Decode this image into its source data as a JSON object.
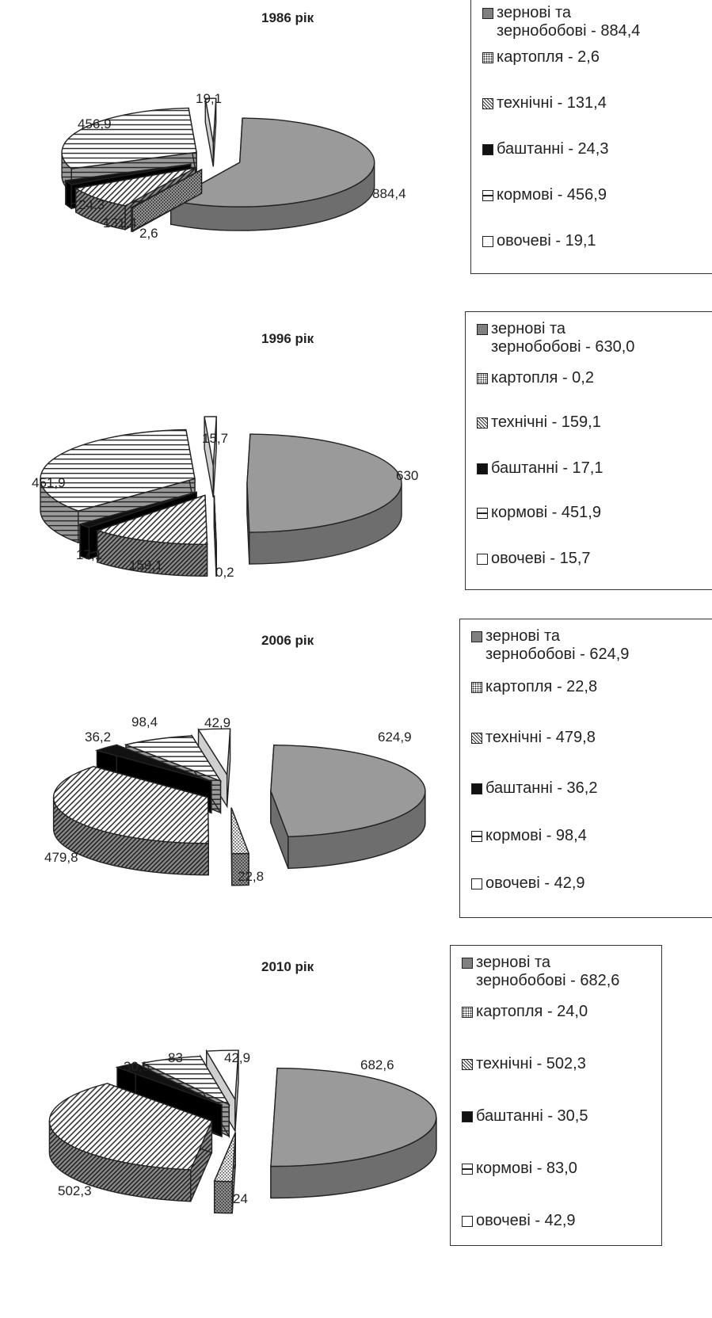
{
  "chart_data": [
    {
      "type": "pie",
      "title": "1986 рік",
      "slices": [
        {
          "name": "зернові та зернобобові",
          "value": 884.4,
          "label": "884,4",
          "legend": "зернові та\nзернобобові - 884,4",
          "pattern": "solid-gray"
        },
        {
          "name": "картопля",
          "value": 2.6,
          "label": "2,6",
          "legend": "картопля - 2,6",
          "pattern": "dots"
        },
        {
          "name": "технічні",
          "value": 131.4,
          "label": "131,4",
          "legend": "технічні - 131,4",
          "pattern": "diag"
        },
        {
          "name": "баштанні",
          "value": 24.3,
          "label": "24,3",
          "legend": "баштанні - 24,3",
          "pattern": "black"
        },
        {
          "name": "кормові",
          "value": 456.9,
          "label": "456,9",
          "legend": "кормові - 456,9",
          "pattern": "hline"
        },
        {
          "name": "овочеві",
          "value": 19.1,
          "label": "19,1",
          "legend": "овочеві - 19,1",
          "pattern": "white"
        }
      ]
    },
    {
      "type": "pie",
      "title": "1996 рік",
      "slices": [
        {
          "name": "зернові та зернобобові",
          "value": 630.0,
          "label": "630",
          "legend": "зернові та\nзернобобові - 630,0",
          "pattern": "solid-gray"
        },
        {
          "name": "картопля",
          "value": 0.2,
          "label": "0,2",
          "legend": "картопля - 0,2",
          "pattern": "dots"
        },
        {
          "name": "технічні",
          "value": 159.1,
          "label": "159,1",
          "legend": "технічні - 159,1",
          "pattern": "diag"
        },
        {
          "name": "баштанні",
          "value": 17.1,
          "label": "17,1",
          "legend": "баштанні - 17,1",
          "pattern": "black"
        },
        {
          "name": "кормові",
          "value": 451.9,
          "label": "451,9",
          "legend": "кормові - 451,9",
          "pattern": "hline"
        },
        {
          "name": "овочеві",
          "value": 15.7,
          "label": "15,7",
          "legend": "овочеві - 15,7",
          "pattern": "white"
        }
      ]
    },
    {
      "type": "pie",
      "title": "2006 рік",
      "slices": [
        {
          "name": "зернові та зернобобові",
          "value": 624.9,
          "label": "624,9",
          "legend": "зернові та\nзернобобові -  624,9",
          "pattern": "solid-gray"
        },
        {
          "name": "картопля",
          "value": 22.8,
          "label": "22,8",
          "legend": "картопля - 22,8",
          "pattern": "dots"
        },
        {
          "name": "технічні",
          "value": 479.8,
          "label": "479,8",
          "legend": "технічні - 479,8",
          "pattern": "diag"
        },
        {
          "name": "баштанні",
          "value": 36.2,
          "label": "36,2",
          "legend": "баштанні - 36,2",
          "pattern": "black"
        },
        {
          "name": "кормові",
          "value": 98.4,
          "label": "98,4",
          "legend": "кормові - 98,4",
          "pattern": "hline"
        },
        {
          "name": "овочеві",
          "value": 42.9,
          "label": "42,9",
          "legend": "овочеві - 42,9",
          "pattern": "white"
        }
      ]
    },
    {
      "type": "pie",
      "title": "2010 рік",
      "slices": [
        {
          "name": "зернові та зернобобові",
          "value": 682.6,
          "label": "682,6",
          "legend": "зернові та\nзернобобові - 682,6",
          "pattern": "solid-gray"
        },
        {
          "name": "картопля",
          "value": 24.0,
          "label": "24",
          "legend": "картопля - 24,0",
          "pattern": "dots"
        },
        {
          "name": "технічні",
          "value": 502.3,
          "label": "502,3",
          "legend": "технічні - 502,3",
          "pattern": "diag"
        },
        {
          "name": "баштанні",
          "value": 30.5,
          "label": "30,5",
          "legend": "баштанні - 30,5",
          "pattern": "black"
        },
        {
          "name": "кормові",
          "value": 83.0,
          "label": "83",
          "legend": "кормові - 83,0",
          "pattern": "hline"
        },
        {
          "name": "овочеві",
          "value": 42.9,
          "label": "42,9",
          "legend": "овочеві - 42,9",
          "pattern": "white"
        }
      ]
    }
  ]
}
